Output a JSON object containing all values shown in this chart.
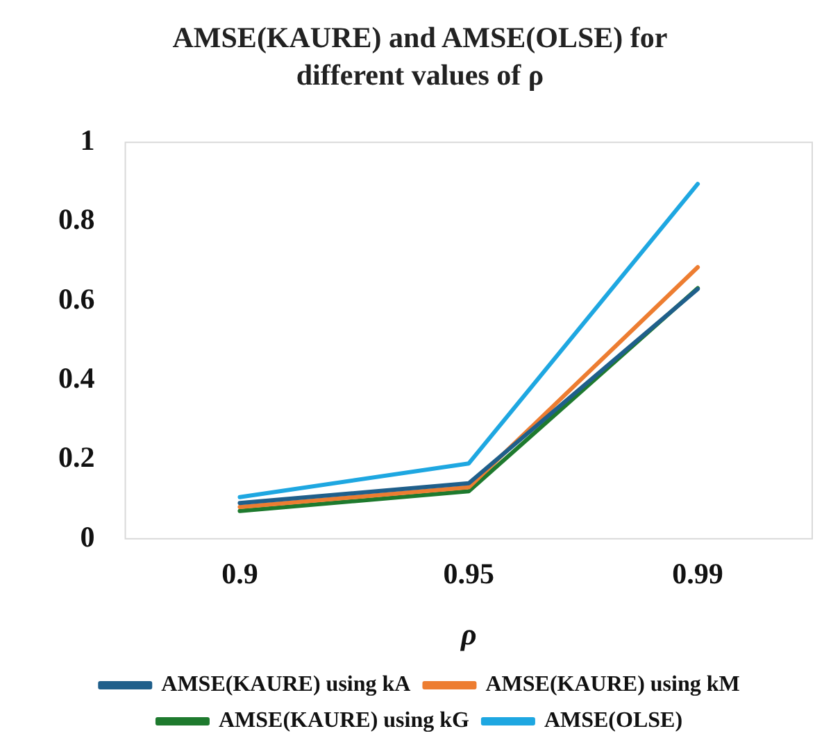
{
  "chart_data": {
    "type": "line",
    "title": "AMSE(KAURE) and AMSE(OLSE) for different values of ρ",
    "xlabel": "ρ",
    "categories": [
      "0.9",
      "0.95",
      "0.99"
    ],
    "series": [
      {
        "name": "AMSE(KAURE) using kA",
        "color": "#1f5f8b",
        "values": [
          0.09,
          0.14,
          0.63
        ]
      },
      {
        "name": "AMSE(KAURE) using kM",
        "color": "#ed7d31",
        "values": [
          0.08,
          0.13,
          0.685
        ]
      },
      {
        "name": "AMSE(KAURE) using kG",
        "color": "#1e7a2e",
        "values": [
          0.07,
          0.12,
          0.632
        ]
      },
      {
        "name": "AMSE(OLSE)",
        "color": "#1ea7e1",
        "values": [
          0.105,
          0.19,
          0.895
        ]
      }
    ],
    "ylim": [
      0,
      1
    ],
    "yticks": [
      0,
      0.2,
      0.4,
      0.6,
      0.8,
      1
    ],
    "grid": false,
    "legend": "bottom",
    "marker": "none",
    "line_style": "solid"
  }
}
